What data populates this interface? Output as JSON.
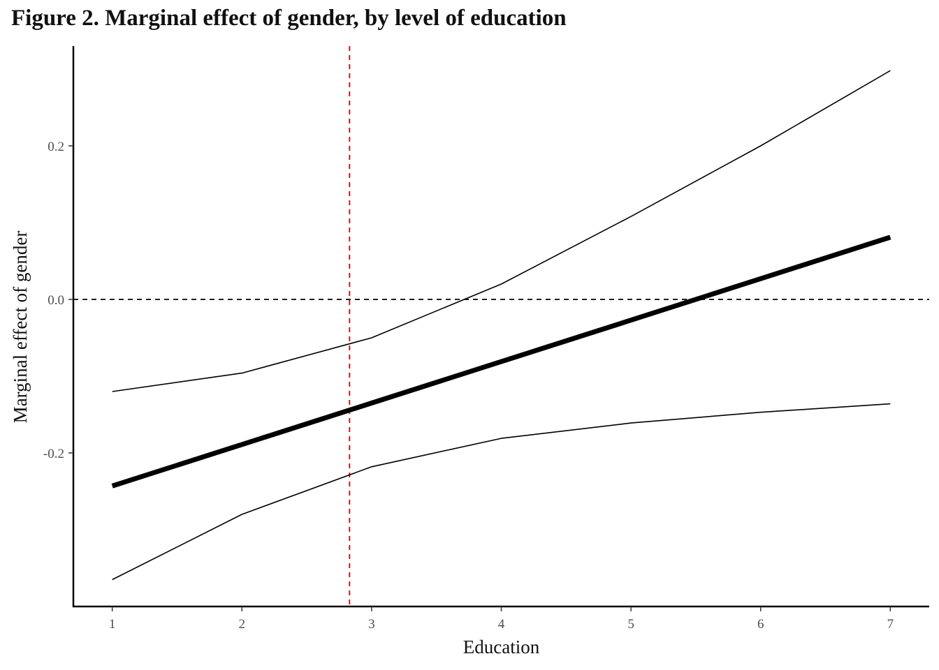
{
  "title": "Figure 2. Marginal effect of gender, by level of education",
  "chart_data": {
    "type": "line",
    "title": "Figure 2. Marginal effect of gender, by level of education",
    "xlabel": "Education",
    "ylabel": "Marginal effect of gender",
    "x": [
      1,
      2,
      3,
      4,
      5,
      6,
      7
    ],
    "xlim": [
      0.7,
      7.3
    ],
    "ylim": [
      -0.4,
      0.33
    ],
    "x_ticks": [
      1,
      2,
      3,
      4,
      5,
      6,
      7
    ],
    "y_ticks": [
      -0.2,
      0.0,
      0.2
    ],
    "y_tick_labels": [
      "-0.2",
      "0.0",
      "0.2"
    ],
    "series": [
      {
        "values": [
          -0.243,
          -0.189,
          -0.135,
          -0.081,
          -0.027,
          0.027,
          0.081
        ],
        "role": "estimate",
        "color": "#000000"
      },
      {
        "values": [
          -0.12,
          -0.096,
          -0.05,
          0.02,
          0.108,
          0.2,
          0.298
        ],
        "role": "upper-bound",
        "color": "#000000"
      },
      {
        "values": [
          -0.365,
          -0.28,
          -0.218,
          -0.181,
          -0.161,
          -0.147,
          -0.136
        ],
        "role": "lower-bound",
        "color": "#000000"
      }
    ],
    "reference_lines": [
      {
        "axis": "y",
        "value": 0.0,
        "style": "dashed",
        "color": "#000000"
      },
      {
        "axis": "x",
        "value": 2.83,
        "style": "dashed",
        "color": "#cc0000"
      }
    ],
    "grid": false,
    "legend": "none"
  }
}
